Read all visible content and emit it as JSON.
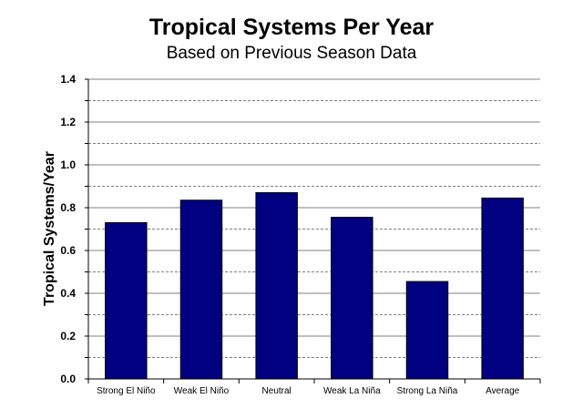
{
  "chart_data": {
    "type": "bar",
    "title": "Tropical Systems Per Year",
    "subtitle": "Based on Previous Season Data",
    "xlabel": "",
    "ylabel": "Tropical Systems/Year",
    "categories": [
      "Strong El Niño",
      "Weak El Niño",
      "Neutral",
      "Weak La Niña",
      "Strong La Niña",
      "Average"
    ],
    "values": [
      0.73,
      0.835,
      0.87,
      0.755,
      0.455,
      0.845
    ],
    "ylim": [
      0,
      1.4
    ],
    "yticks": [
      "0.0",
      "0.2",
      "0.4",
      "0.6",
      "0.8",
      "1.0",
      "1.2",
      "1.4"
    ],
    "grid": true,
    "legend": "none",
    "bar_color": "#000080"
  }
}
